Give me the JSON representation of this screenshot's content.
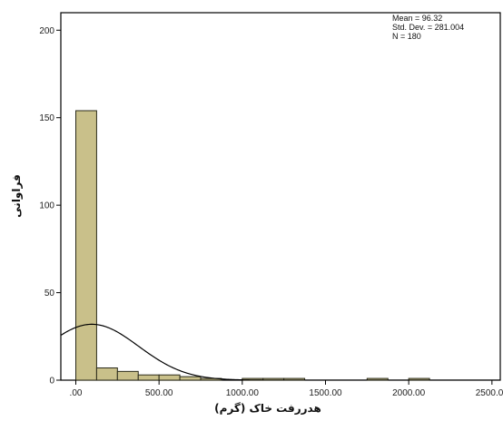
{
  "chart_data": {
    "type": "bar",
    "subtype": "histogram",
    "xlabel": "هدررفت خاک (گرم)",
    "ylabel": "فراوانی",
    "xlim": [
      -90,
      2550
    ],
    "ylim": [
      0,
      210
    ],
    "x_ticks": [
      0,
      500,
      1000,
      1500,
      2000,
      2500
    ],
    "x_tick_labels": [
      ".00",
      "500.00",
      "1000.00",
      "1500.00",
      "2000.00",
      "2500.00"
    ],
    "y_ticks": [
      0,
      50,
      100,
      150,
      200
    ],
    "y_tick_labels": [
      "0",
      "50",
      "100",
      "150",
      "200"
    ],
    "bin_width": 125,
    "bins": [
      {
        "start": 0,
        "end": 125,
        "count": 154
      },
      {
        "start": 125,
        "end": 250,
        "count": 7
      },
      {
        "start": 250,
        "end": 375,
        "count": 5
      },
      {
        "start": 375,
        "end": 500,
        "count": 3
      },
      {
        "start": 500,
        "end": 625,
        "count": 3
      },
      {
        "start": 625,
        "end": 750,
        "count": 2
      },
      {
        "start": 750,
        "end": 875,
        "count": 1
      },
      {
        "start": 875,
        "end": 1000,
        "count": 0
      },
      {
        "start": 1000,
        "end": 1125,
        "count": 1
      },
      {
        "start": 1125,
        "end": 1250,
        "count": 1
      },
      {
        "start": 1250,
        "end": 1375,
        "count": 1
      },
      {
        "start": 1375,
        "end": 1500,
        "count": 0
      },
      {
        "start": 1500,
        "end": 1625,
        "count": 0
      },
      {
        "start": 1625,
        "end": 1750,
        "count": 0
      },
      {
        "start": 1750,
        "end": 1875,
        "count": 1
      },
      {
        "start": 1875,
        "end": 2000,
        "count": 0
      },
      {
        "start": 2000,
        "end": 2125,
        "count": 1
      }
    ],
    "normal_curve": {
      "mean": 96.32,
      "std_dev": 281.004,
      "n": 180
    },
    "stats": {
      "mean_label": "Mean = 96.32",
      "std_label": "Std. Dev. = 281.004",
      "n_label": "N = 180"
    },
    "colors": {
      "bar": "#c9c08a",
      "bar_edge": "#2a2a1a",
      "curve": "#000000"
    },
    "grid": false,
    "legend": "none"
  }
}
